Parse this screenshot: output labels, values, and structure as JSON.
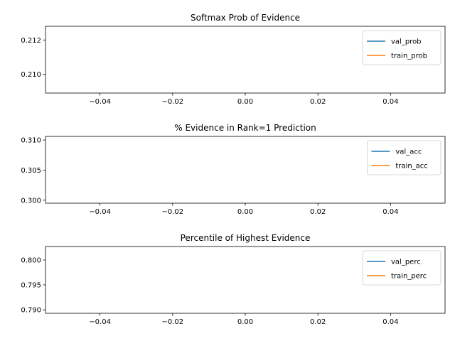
{
  "chart_data": [
    {
      "type": "line",
      "title": "Softmax Prob of Evidence",
      "xlabel": "",
      "ylabel": "",
      "xlim": [
        -0.055,
        0.055
      ],
      "ylim": [
        0.2089,
        0.2128
      ],
      "x_ticks": [
        -0.04,
        -0.02,
        0.0,
        0.02,
        0.04
      ],
      "x_tick_labels": [
        "−0.04",
        "−0.02",
        "0.00",
        "0.02",
        "0.04"
      ],
      "y_ticks": [
        0.21,
        0.212
      ],
      "y_tick_labels": [
        "0.210",
        "0.212"
      ],
      "legend_position": "upper-right",
      "series": [
        {
          "name": "val_prob",
          "color": "#1f77b4",
          "x": [],
          "y": []
        },
        {
          "name": "train_prob",
          "color": "#ff7f0e",
          "x": [],
          "y": []
        }
      ]
    },
    {
      "type": "line",
      "title": "% Evidence in Rank=1 Prediction",
      "xlabel": "",
      "ylabel": "",
      "xlim": [
        -0.055,
        0.055
      ],
      "ylim": [
        0.2995,
        0.3106
      ],
      "x_ticks": [
        -0.04,
        -0.02,
        0.0,
        0.02,
        0.04
      ],
      "x_tick_labels": [
        "−0.04",
        "−0.02",
        "0.00",
        "0.02",
        "0.04"
      ],
      "y_ticks": [
        0.3,
        0.305,
        0.31
      ],
      "y_tick_labels": [
        "0.300",
        "0.305",
        "0.310"
      ],
      "legend_position": "upper-right",
      "series": [
        {
          "name": "val_acc",
          "color": "#1f77b4",
          "x": [],
          "y": []
        },
        {
          "name": "train_acc",
          "color": "#ff7f0e",
          "x": [],
          "y": []
        }
      ]
    },
    {
      "type": "line",
      "title": "Percentile of Highest Evidence",
      "xlabel": "",
      "ylabel": "",
      "xlim": [
        -0.055,
        0.055
      ],
      "ylim": [
        0.7893,
        0.8027
      ],
      "x_ticks": [
        -0.04,
        -0.02,
        0.0,
        0.02,
        0.04
      ],
      "x_tick_labels": [
        "−0.04",
        "−0.02",
        "0.00",
        "0.02",
        "0.04"
      ],
      "y_ticks": [
        0.79,
        0.795,
        0.8
      ],
      "y_tick_labels": [
        "0.790",
        "0.795",
        "0.800"
      ],
      "legend_position": "upper-right",
      "series": [
        {
          "name": "val_perc",
          "color": "#1f77b4",
          "x": [],
          "y": []
        },
        {
          "name": "train_perc",
          "color": "#ff7f0e",
          "x": [],
          "y": []
        }
      ]
    }
  ]
}
